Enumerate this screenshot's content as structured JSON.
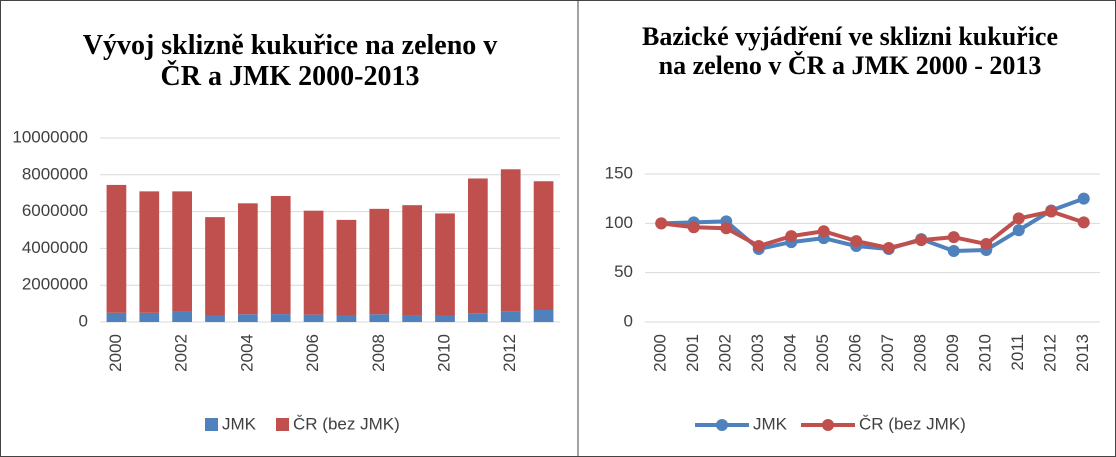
{
  "chart_data": [
    {
      "type": "bar",
      "stacked": true,
      "title": "Vývoj sklizně kukuřice na zeleno v ČR a JMK 2000-2013",
      "categories": [
        2000,
        null,
        2002,
        null,
        2004,
        null,
        2006,
        null,
        2008,
        null,
        2010,
        null,
        2012,
        null
      ],
      "series": [
        {
          "name": "JMK",
          "color": "#4f81bd",
          "values": [
            500000,
            500000,
            550000,
            380000,
            420000,
            430000,
            400000,
            380000,
            420000,
            350000,
            380000,
            480000,
            580000,
            650000
          ]
        },
        {
          "name": "ČR (bez JMK)",
          "color": "#c0504d",
          "values": [
            6950000,
            6600000,
            6550000,
            5320000,
            6030000,
            6420000,
            5650000,
            5170000,
            5730000,
            6000000,
            5520000,
            7320000,
            7720000,
            7000000
          ]
        }
      ],
      "ylim": [
        0,
        10000000
      ],
      "yticks": [
        0,
        2000000,
        4000000,
        6000000,
        8000000,
        10000000
      ],
      "grid": true,
      "legend": "bottom"
    },
    {
      "type": "line",
      "title": "Bazické vyjádření ve sklizni kukuřice na zeleno v ČR a JMK 2000 - 2013",
      "categories": [
        2000,
        2001,
        2002,
        2003,
        2004,
        2005,
        2006,
        2007,
        2008,
        2009,
        2010,
        2011,
        2012,
        2013
      ],
      "series": [
        {
          "name": "JMK",
          "color": "#4f81bd",
          "values": [
            100,
            101,
            102,
            74,
            81,
            85,
            77,
            74,
            84,
            72,
            73,
            93,
            113,
            125
          ]
        },
        {
          "name": "ČR (bez JMK)",
          "color": "#c0504d",
          "values": [
            100,
            96,
            95,
            77,
            87,
            92,
            82,
            75,
            83,
            86,
            79,
            105,
            112,
            101
          ]
        }
      ],
      "ylim": [
        0,
        150
      ],
      "yticks": [
        0,
        50,
        100,
        150
      ],
      "grid": true,
      "legend": "bottom"
    }
  ]
}
